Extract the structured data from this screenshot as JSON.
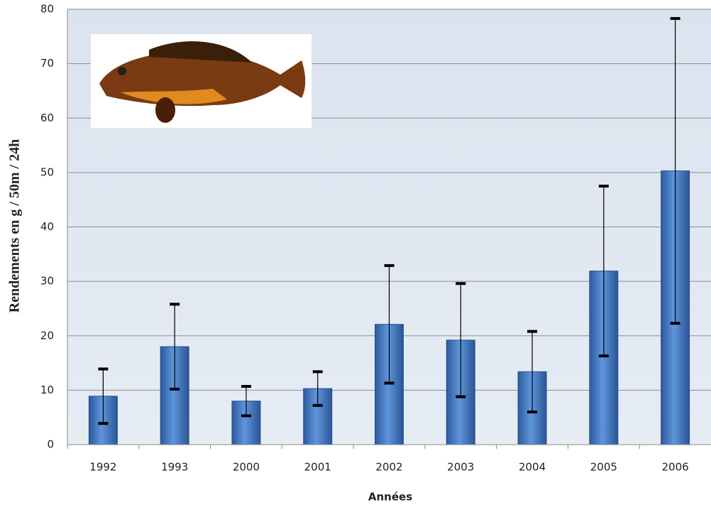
{
  "chart_data": {
    "type": "bar",
    "x_label": "Années",
    "y_label": "Rendements en g / 50m / 24h",
    "categories": [
      "1992",
      "1993",
      "2000",
      "2001",
      "2002",
      "2003",
      "2004",
      "2005",
      "2006"
    ],
    "values": [
      8.9,
      18.0,
      8.0,
      10.3,
      22.1,
      19.2,
      13.4,
      31.9,
      50.3
    ],
    "errors": [
      5.0,
      7.8,
      2.7,
      3.1,
      10.8,
      10.4,
      7.4,
      15.6,
      28.0
    ],
    "color": "#3a72c0",
    "ylim": [
      0,
      80
    ],
    "yticks": [
      0,
      10,
      20,
      30,
      40,
      50,
      60,
      70,
      80
    ],
    "grid": true
  }
}
